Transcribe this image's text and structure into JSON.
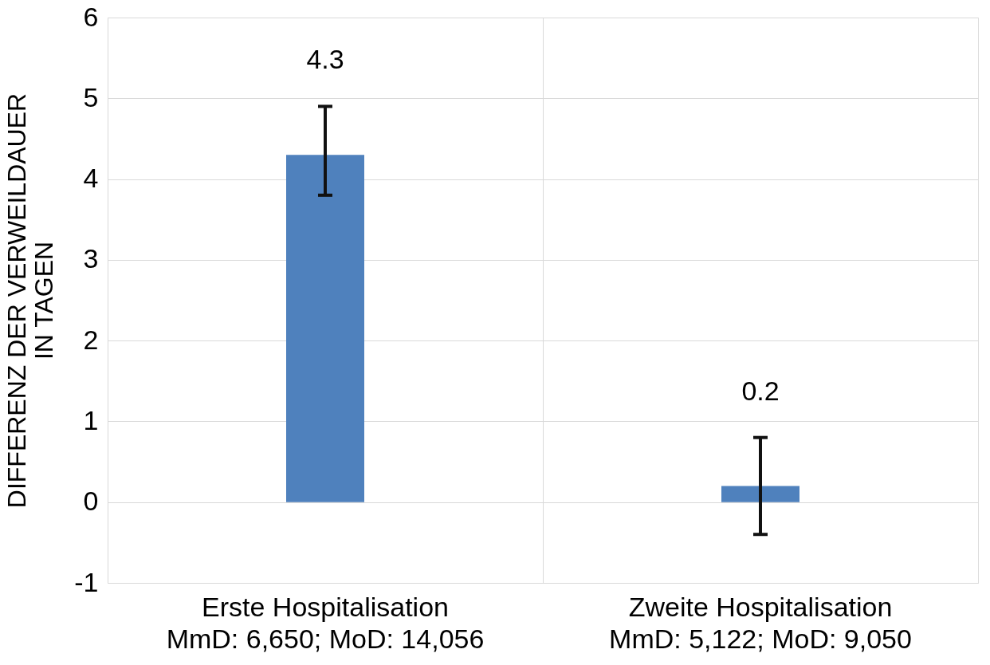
{
  "chart_data": {
    "type": "bar",
    "ylabel": "DIFFERENZ DER VERWEILDAUER\nIN TAGEN",
    "categories": [
      "Erste Hospitalisation\nMmD: 6,650; MoD: 14,056",
      "Zweite Hospitalisation\nMmD: 5,122; MoD: 9,050"
    ],
    "values": [
      4.3,
      0.2
    ],
    "errors": [
      [
        3.8,
        4.9
      ],
      [
        -0.4,
        0.8
      ]
    ],
    "color": "#4f81bd",
    "ylim": [
      -1,
      6
    ],
    "yticks": [
      -1,
      0,
      1,
      2,
      3,
      4,
      5,
      6
    ],
    "grid": true,
    "data_labels": true
  }
}
